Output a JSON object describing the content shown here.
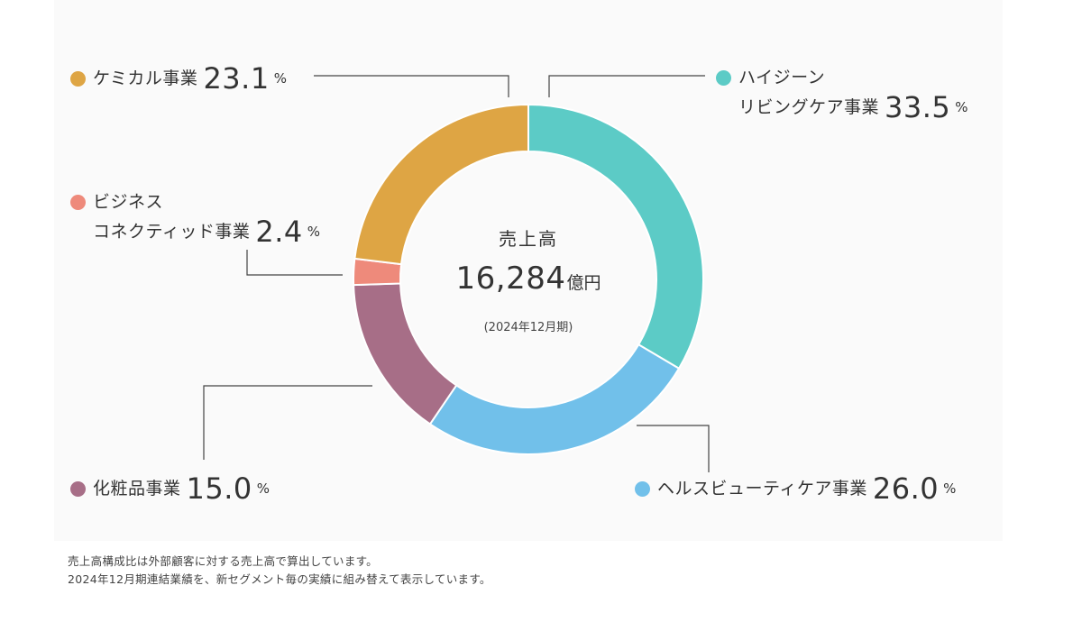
{
  "chart_data": {
    "type": "pie",
    "variant": "donut",
    "slices": [
      {
        "key": "hygiene",
        "label_line1": "ハイジーン",
        "label_line2": "リビングケア事業",
        "value": 33.5,
        "value_text": "33.5",
        "color": "#5ccbc6"
      },
      {
        "key": "health_beauty",
        "label_line1": "ヘルスビューティケア事業",
        "value": 26.0,
        "value_text": "26.0",
        "color": "#71c0ea"
      },
      {
        "key": "cosmetics",
        "label_line1": "化粧品事業",
        "value": 15.0,
        "value_text": "15.0",
        "color": "#a76e87"
      },
      {
        "key": "business_connected",
        "label_line1": "ビジネス",
        "label_line2": "コネクティッド事業",
        "value": 2.4,
        "value_text": "2.4",
        "color": "#ee8a7b"
      },
      {
        "key": "chemical",
        "label_line1": "ケミカル事業",
        "value": 23.1,
        "value_text": "23.1",
        "color": "#dea544"
      }
    ],
    "unit": "%",
    "center": {
      "title": "売上高",
      "value": "16,284",
      "value_unit": "億円",
      "period": "(2024年12月期)"
    }
  },
  "notes": [
    "売上高構成比は外部顧客に対する売上高で算出しています。",
    "2024年12月期連結業績を、新セグメント毎の実績に組み替えて表示しています。"
  ]
}
